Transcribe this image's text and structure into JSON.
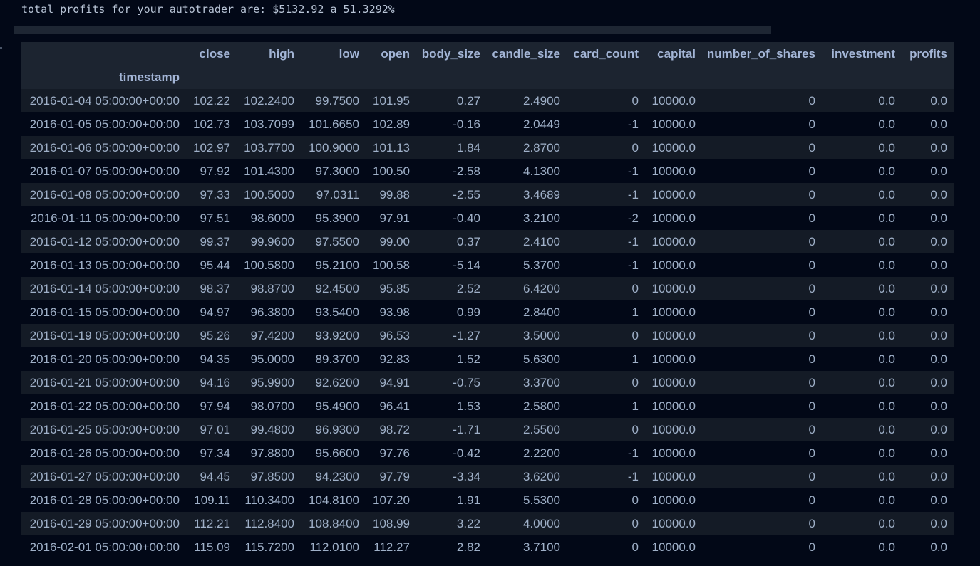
{
  "output": {
    "summary_line": "total profits for your autotrader are: $5132.92 a 51.3292%"
  },
  "table": {
    "index_name": "timestamp",
    "columns": [
      "close",
      "high",
      "low",
      "open",
      "body_size",
      "candle_size",
      "card_count",
      "capital",
      "number_of_shares",
      "investment",
      "profits"
    ],
    "rows": [
      {
        "timestamp": "2016-01-04 05:00:00+00:00",
        "values": [
          "102.22",
          "102.2400",
          "99.7500",
          "101.95",
          "0.27",
          "2.4900",
          "0",
          "10000.0",
          "0",
          "0.0",
          "0.0"
        ]
      },
      {
        "timestamp": "2016-01-05 05:00:00+00:00",
        "values": [
          "102.73",
          "103.7099",
          "101.6650",
          "102.89",
          "-0.16",
          "2.0449",
          "-1",
          "10000.0",
          "0",
          "0.0",
          "0.0"
        ]
      },
      {
        "timestamp": "2016-01-06 05:00:00+00:00",
        "values": [
          "102.97",
          "103.7700",
          "100.9000",
          "101.13",
          "1.84",
          "2.8700",
          "0",
          "10000.0",
          "0",
          "0.0",
          "0.0"
        ]
      },
      {
        "timestamp": "2016-01-07 05:00:00+00:00",
        "values": [
          "97.92",
          "101.4300",
          "97.3000",
          "100.50",
          "-2.58",
          "4.1300",
          "-1",
          "10000.0",
          "0",
          "0.0",
          "0.0"
        ]
      },
      {
        "timestamp": "2016-01-08 05:00:00+00:00",
        "values": [
          "97.33",
          "100.5000",
          "97.0311",
          "99.88",
          "-2.55",
          "3.4689",
          "-1",
          "10000.0",
          "0",
          "0.0",
          "0.0"
        ]
      },
      {
        "timestamp": "2016-01-11 05:00:00+00:00",
        "values": [
          "97.51",
          "98.6000",
          "95.3900",
          "97.91",
          "-0.40",
          "3.2100",
          "-2",
          "10000.0",
          "0",
          "0.0",
          "0.0"
        ]
      },
      {
        "timestamp": "2016-01-12 05:00:00+00:00",
        "values": [
          "99.37",
          "99.9600",
          "97.5500",
          "99.00",
          "0.37",
          "2.4100",
          "-1",
          "10000.0",
          "0",
          "0.0",
          "0.0"
        ]
      },
      {
        "timestamp": "2016-01-13 05:00:00+00:00",
        "values": [
          "95.44",
          "100.5800",
          "95.2100",
          "100.58",
          "-5.14",
          "5.3700",
          "-1",
          "10000.0",
          "0",
          "0.0",
          "0.0"
        ]
      },
      {
        "timestamp": "2016-01-14 05:00:00+00:00",
        "values": [
          "98.37",
          "98.8700",
          "92.4500",
          "95.85",
          "2.52",
          "6.4200",
          "0",
          "10000.0",
          "0",
          "0.0",
          "0.0"
        ]
      },
      {
        "timestamp": "2016-01-15 05:00:00+00:00",
        "values": [
          "94.97",
          "96.3800",
          "93.5400",
          "93.98",
          "0.99",
          "2.8400",
          "1",
          "10000.0",
          "0",
          "0.0",
          "0.0"
        ]
      },
      {
        "timestamp": "2016-01-19 05:00:00+00:00",
        "values": [
          "95.26",
          "97.4200",
          "93.9200",
          "96.53",
          "-1.27",
          "3.5000",
          "0",
          "10000.0",
          "0",
          "0.0",
          "0.0"
        ]
      },
      {
        "timestamp": "2016-01-20 05:00:00+00:00",
        "values": [
          "94.35",
          "95.0000",
          "89.3700",
          "92.83",
          "1.52",
          "5.6300",
          "1",
          "10000.0",
          "0",
          "0.0",
          "0.0"
        ]
      },
      {
        "timestamp": "2016-01-21 05:00:00+00:00",
        "values": [
          "94.16",
          "95.9900",
          "92.6200",
          "94.91",
          "-0.75",
          "3.3700",
          "0",
          "10000.0",
          "0",
          "0.0",
          "0.0"
        ]
      },
      {
        "timestamp": "2016-01-22 05:00:00+00:00",
        "values": [
          "97.94",
          "98.0700",
          "95.4900",
          "96.41",
          "1.53",
          "2.5800",
          "1",
          "10000.0",
          "0",
          "0.0",
          "0.0"
        ]
      },
      {
        "timestamp": "2016-01-25 05:00:00+00:00",
        "values": [
          "97.01",
          "99.4800",
          "96.9300",
          "98.72",
          "-1.71",
          "2.5500",
          "0",
          "10000.0",
          "0",
          "0.0",
          "0.0"
        ]
      },
      {
        "timestamp": "2016-01-26 05:00:00+00:00",
        "values": [
          "97.34",
          "97.8800",
          "95.6600",
          "97.76",
          "-0.42",
          "2.2200",
          "-1",
          "10000.0",
          "0",
          "0.0",
          "0.0"
        ]
      },
      {
        "timestamp": "2016-01-27 05:00:00+00:00",
        "values": [
          "94.45",
          "97.8500",
          "94.2300",
          "97.79",
          "-3.34",
          "3.6200",
          "-1",
          "10000.0",
          "0",
          "0.0",
          "0.0"
        ]
      },
      {
        "timestamp": "2016-01-28 05:00:00+00:00",
        "values": [
          "109.11",
          "110.3400",
          "104.8100",
          "107.20",
          "1.91",
          "5.5300",
          "0",
          "10000.0",
          "0",
          "0.0",
          "0.0"
        ]
      },
      {
        "timestamp": "2016-01-29 05:00:00+00:00",
        "values": [
          "112.21",
          "112.8400",
          "108.8400",
          "108.99",
          "3.22",
          "4.0000",
          "0",
          "10000.0",
          "0",
          "0.0",
          "0.0"
        ]
      },
      {
        "timestamp": "2016-02-01 05:00:00+00:00",
        "values": [
          "115.09",
          "115.7200",
          "112.0100",
          "112.27",
          "2.82",
          "3.7100",
          "0",
          "10000.0",
          "0",
          "0.0",
          "0.0"
        ]
      }
    ]
  }
}
